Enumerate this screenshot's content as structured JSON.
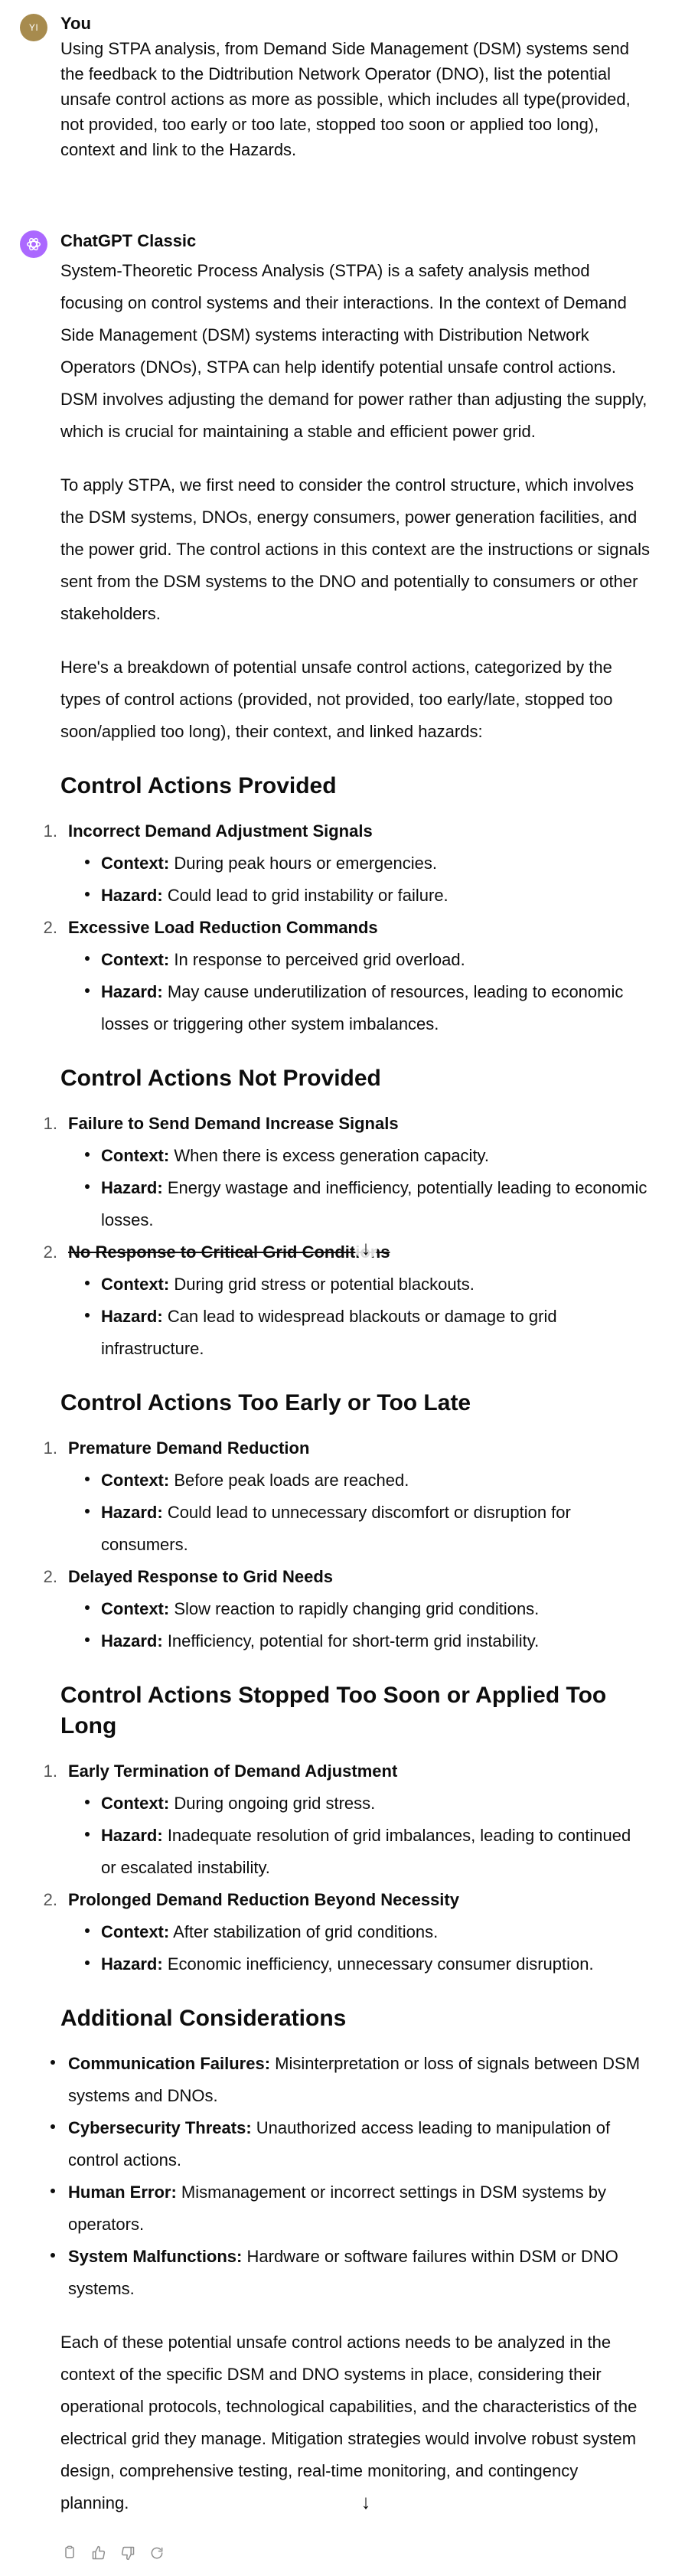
{
  "user_message": {
    "avatar_initials": "YI",
    "author": "You",
    "text": "Using STPA analysis, from Demand Side Management (DSM) systems send the feedback to the Didtribution Network Operator (DNO), list the potential unsafe control actions as more as possible, which includes all type(provided, not provided, too early or too late, stopped too soon or applied too long), context and link to the Hazards."
  },
  "assistant_message": {
    "author": "ChatGPT Classic",
    "intro_paragraphs": [
      "System-Theoretic Process Analysis (STPA) is a safety analysis method focusing on control systems and their interactions. In the context of Demand Side Management (DSM) systems interacting with Distribution Network Operators (DNOs), STPA can help identify potential unsafe control actions. DSM involves adjusting the demand for power rather than adjusting the supply, which is crucial for maintaining a stable and efficient power grid.",
      "To apply STPA, we first need to consider the control structure, which involves the DSM systems, DNOs, energy consumers, power generation facilities, and the power grid. The control actions in this context are the instructions or signals sent from the DSM systems to the DNO and potentially to consumers or other stakeholders.",
      "Here's a breakdown of potential unsafe control actions, categorized by the types of control actions (provided, not provided, too early/late, stopped too soon/applied too long), their context, and linked hazards:"
    ],
    "context_label": "Context:",
    "hazard_label": "Hazard:",
    "sections": [
      {
        "heading": "Control Actions Provided",
        "items": [
          {
            "num": "1.",
            "title": "Incorrect Demand Adjustment Signals",
            "context": "During peak hours or emergencies.",
            "hazard": "Could lead to grid instability or failure."
          },
          {
            "num": "2.",
            "title": "Excessive Load Reduction Commands",
            "context": "In response to perceived grid overload.",
            "hazard": "May cause underutilization of resources, leading to economic losses or triggering other system imbalances."
          }
        ]
      },
      {
        "heading": "Control Actions Not Provided",
        "items": [
          {
            "num": "1.",
            "title": "Failure to Send Demand Increase Signals",
            "context": "When there is excess generation capacity.",
            "hazard": "Energy wastage and inefficiency, potentially leading to economic losses."
          },
          {
            "num": "2.",
            "title": "No Response to Critical Grid Conditions",
            "context": "During grid stress or potential blackouts.",
            "hazard": "Can lead to widespread blackouts or damage to grid infrastructure."
          }
        ]
      },
      {
        "heading": "Control Actions Too Early or Too Late",
        "items": [
          {
            "num": "1.",
            "title": "Premature Demand Reduction",
            "context": "Before peak loads are reached.",
            "hazard": "Could lead to unnecessary discomfort or disruption for consumers."
          },
          {
            "num": "2.",
            "title": "Delayed Response to Grid Needs",
            "context": "Slow reaction to rapidly changing grid conditions.",
            "hazard": "Inefficiency, potential for short-term grid instability."
          }
        ]
      },
      {
        "heading": "Control Actions Stopped Too Soon or Applied Too Long",
        "items": [
          {
            "num": "1.",
            "title": "Early Termination of Demand Adjustment",
            "context": "During ongoing grid stress.",
            "hazard": "Inadequate resolution of grid imbalances, leading to continued or escalated instability."
          },
          {
            "num": "2.",
            "title": "Prolonged Demand Reduction Beyond Necessity",
            "context": "After stabilization of grid conditions.",
            "hazard": "Economic inefficiency, unnecessary consumer disruption."
          }
        ]
      }
    ],
    "additional": {
      "heading": "Additional Considerations",
      "items": [
        {
          "label": "Communication Failures:",
          "text": "Misinterpretation or loss of signals between DSM systems and DNOs."
        },
        {
          "label": "Cybersecurity Threats:",
          "text": "Unauthorized access leading to manipulation of control actions."
        },
        {
          "label": "Human Error:",
          "text": "Mismanagement or incorrect settings in DSM systems by operators."
        },
        {
          "label": "System Malfunctions:",
          "text": "Hardware or software failures within DSM or DNO systems."
        }
      ]
    },
    "closing": "Each of these potential unsafe control actions needs to be analyzed in the context of the specific DSM and DNO systems in place, considering their operational protocols, technological capabilities, and the characteristics of the electrical grid they manage. Mitigation strategies would involve robust system design, comprehensive testing, real-time monitoring, and contingency planning."
  },
  "icons": {
    "avatar_bot": "openai-logo-icon",
    "scroll": "arrow-down-icon",
    "copy": "copy-icon",
    "like": "thumbs-up-icon",
    "dislike": "thumbs-down-icon",
    "regenerate": "regenerate-icon"
  },
  "colors": {
    "user_avatar": "#a78b4e",
    "bot_avatar": "#ab68ff",
    "text": "#0d0d0d",
    "icon_muted": "#8e8e8e"
  }
}
